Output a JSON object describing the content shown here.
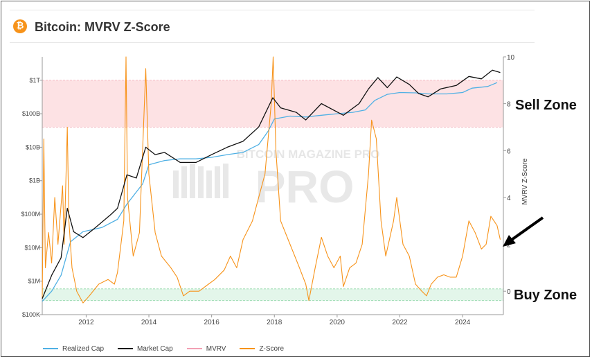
{
  "header": {
    "icon": "bitcoin-icon",
    "icon_glyph": "₿",
    "title": "Bitcoin: MVRV Z-Score"
  },
  "annotations": {
    "sell_zone": "Sell Zone",
    "buy_zone": "Buy Zone"
  },
  "watermark": "BITCOIN MAGAZINE PRO",
  "colors": {
    "realized_cap": "#4fb0e4",
    "market_cap": "#111111",
    "mvrv": "#f2a0b4",
    "z_score": "#f7931a",
    "sell_band": "#fde2e4",
    "buy_band": "#e3f6ea"
  },
  "chart_data": {
    "type": "line",
    "x_range": [
      2010.6,
      2025.3
    ],
    "x_ticks": [
      "2012",
      "2014",
      "2016",
      "2018",
      "2020",
      "2022",
      "2024"
    ],
    "left_axis": {
      "scale": "log",
      "range": [
        100000,
        5000000000000
      ],
      "ticks": [
        {
          "label": "$100K",
          "value": 100000
        },
        {
          "label": "$1M",
          "value": 1000000
        },
        {
          "label": "$10M",
          "value": 10000000
        },
        {
          "label": "$100M",
          "value": 100000000
        },
        {
          "label": "$1B",
          "value": 1000000000
        },
        {
          "label": "$10B",
          "value": 10000000000
        },
        {
          "label": "$100B",
          "value": 100000000000
        },
        {
          "label": "$1T",
          "value": 1000000000000
        }
      ]
    },
    "right_axis": {
      "label": "MVRV Z-Score",
      "range": [
        -1,
        10
      ],
      "ticks": [
        "0",
        "2",
        "4",
        "6",
        "8",
        "10"
      ]
    },
    "sell_zone": [
      7,
      9
    ],
    "buy_zone": [
      -0.4,
      0.1
    ],
    "series": [
      {
        "name": "Realized Cap",
        "axis": "left",
        "points": [
          [
            2010.6,
            250000
          ],
          [
            2010.9,
            500000
          ],
          [
            2011.2,
            1500000
          ],
          [
            2011.5,
            15000000
          ],
          [
            2011.9,
            30000000
          ],
          [
            2012.5,
            40000000
          ],
          [
            2013.0,
            70000000
          ],
          [
            2013.3,
            200000000
          ],
          [
            2013.8,
            800000000
          ],
          [
            2014.0,
            3000000000
          ],
          [
            2014.5,
            4000000000
          ],
          [
            2015.0,
            4500000000
          ],
          [
            2015.5,
            4500000000
          ],
          [
            2016.0,
            5000000000
          ],
          [
            2016.5,
            6000000000
          ],
          [
            2017.0,
            7000000000
          ],
          [
            2017.5,
            12000000000
          ],
          [
            2017.8,
            30000000000
          ],
          [
            2018.0,
            70000000000
          ],
          [
            2018.5,
            85000000000
          ],
          [
            2019.0,
            80000000000
          ],
          [
            2019.5,
            90000000000
          ],
          [
            2020.0,
            100000000000
          ],
          [
            2020.5,
            110000000000
          ],
          [
            2020.9,
            130000000000
          ],
          [
            2021.2,
            250000000000
          ],
          [
            2021.6,
            380000000000
          ],
          [
            2022.0,
            430000000000
          ],
          [
            2022.5,
            420000000000
          ],
          [
            2022.9,
            390000000000
          ],
          [
            2023.5,
            390000000000
          ],
          [
            2024.0,
            430000000000
          ],
          [
            2024.3,
            580000000000
          ],
          [
            2024.8,
            650000000000
          ],
          [
            2025.1,
            850000000000
          ]
        ]
      },
      {
        "name": "Market Cap",
        "axis": "left",
        "points": [
          [
            2010.6,
            300000
          ],
          [
            2010.9,
            1500000
          ],
          [
            2011.2,
            5000000
          ],
          [
            2011.4,
            150000000
          ],
          [
            2011.6,
            30000000
          ],
          [
            2011.9,
            20000000
          ],
          [
            2012.3,
            40000000
          ],
          [
            2012.8,
            100000000
          ],
          [
            2013.0,
            150000000
          ],
          [
            2013.3,
            1500000000
          ],
          [
            2013.6,
            1200000000
          ],
          [
            2013.9,
            10000000000
          ],
          [
            2014.2,
            6000000000
          ],
          [
            2014.5,
            7000000000
          ],
          [
            2015.0,
            3500000000
          ],
          [
            2015.5,
            3500000000
          ],
          [
            2016.0,
            6000000000
          ],
          [
            2016.5,
            10000000000
          ],
          [
            2017.0,
            15000000000
          ],
          [
            2017.5,
            40000000000
          ],
          [
            2017.95,
            300000000000
          ],
          [
            2018.2,
            150000000000
          ],
          [
            2018.7,
            110000000000
          ],
          [
            2019.0,
            65000000000
          ],
          [
            2019.5,
            200000000000
          ],
          [
            2020.2,
            90000000000
          ],
          [
            2020.7,
            200000000000
          ],
          [
            2021.0,
            550000000000
          ],
          [
            2021.3,
            1200000000000
          ],
          [
            2021.6,
            600000000000
          ],
          [
            2021.9,
            1250000000000
          ],
          [
            2022.3,
            750000000000
          ],
          [
            2022.6,
            400000000000
          ],
          [
            2022.9,
            320000000000
          ],
          [
            2023.3,
            550000000000
          ],
          [
            2023.8,
            700000000000
          ],
          [
            2024.2,
            1300000000000
          ],
          [
            2024.6,
            1100000000000
          ],
          [
            2024.95,
            2000000000000
          ],
          [
            2025.2,
            1700000000000
          ]
        ]
      },
      {
        "name": "MVRV",
        "axis": "right",
        "points": []
      },
      {
        "name": "Z-Score",
        "axis": "right",
        "points": [
          [
            2010.6,
            -0.3
          ],
          [
            2010.65,
            6.5
          ],
          [
            2010.7,
            1
          ],
          [
            2010.8,
            2.5
          ],
          [
            2010.9,
            1.2
          ],
          [
            2011.0,
            4
          ],
          [
            2011.1,
            2
          ],
          [
            2011.25,
            4.5
          ],
          [
            2011.3,
            2
          ],
          [
            2011.4,
            7
          ],
          [
            2011.45,
            3
          ],
          [
            2011.55,
            1
          ],
          [
            2011.7,
            0
          ],
          [
            2011.9,
            -0.5
          ],
          [
            2012.1,
            -0.2
          ],
          [
            2012.4,
            0.3
          ],
          [
            2012.7,
            0.5
          ],
          [
            2012.9,
            0.3
          ],
          [
            2013.0,
            0.8
          ],
          [
            2013.2,
            3
          ],
          [
            2013.27,
            10
          ],
          [
            2013.32,
            4
          ],
          [
            2013.5,
            1.5
          ],
          [
            2013.7,
            2.5
          ],
          [
            2013.9,
            9.5
          ],
          [
            2014.0,
            5
          ],
          [
            2014.2,
            2.5
          ],
          [
            2014.4,
            1.5
          ],
          [
            2014.7,
            1
          ],
          [
            2014.9,
            0.6
          ],
          [
            2015.1,
            -0.2
          ],
          [
            2015.3,
            0
          ],
          [
            2015.6,
            0
          ],
          [
            2015.9,
            0.3
          ],
          [
            2016.1,
            0.5
          ],
          [
            2016.4,
            0.9
          ],
          [
            2016.6,
            1.5
          ],
          [
            2016.8,
            1
          ],
          [
            2017.0,
            2.2
          ],
          [
            2017.3,
            3
          ],
          [
            2017.5,
            4
          ],
          [
            2017.7,
            5
          ],
          [
            2017.9,
            8
          ],
          [
            2017.96,
            10
          ],
          [
            2018.05,
            6
          ],
          [
            2018.2,
            3
          ],
          [
            2018.5,
            2
          ],
          [
            2018.8,
            1
          ],
          [
            2019.0,
            0.3
          ],
          [
            2019.1,
            -0.4
          ],
          [
            2019.3,
            1
          ],
          [
            2019.5,
            2.3
          ],
          [
            2019.7,
            1.5
          ],
          [
            2019.9,
            1
          ],
          [
            2020.1,
            1.5
          ],
          [
            2020.2,
            0.2
          ],
          [
            2020.4,
            1
          ],
          [
            2020.6,
            1.2
          ],
          [
            2020.8,
            2
          ],
          [
            2021.0,
            5
          ],
          [
            2021.1,
            7.3
          ],
          [
            2021.25,
            6.5
          ],
          [
            2021.4,
            3
          ],
          [
            2021.55,
            1.5
          ],
          [
            2021.8,
            3
          ],
          [
            2021.9,
            4
          ],
          [
            2022.1,
            2
          ],
          [
            2022.3,
            1.5
          ],
          [
            2022.5,
            0.3
          ],
          [
            2022.7,
            0
          ],
          [
            2022.85,
            -0.2
          ],
          [
            2023.0,
            0.3
          ],
          [
            2023.2,
            0.6
          ],
          [
            2023.4,
            0.7
          ],
          [
            2023.6,
            0.6
          ],
          [
            2023.8,
            0.6
          ],
          [
            2024.0,
            1.5
          ],
          [
            2024.2,
            3
          ],
          [
            2024.4,
            2.5
          ],
          [
            2024.6,
            1.8
          ],
          [
            2024.75,
            2
          ],
          [
            2024.9,
            3.2
          ],
          [
            2025.0,
            3
          ],
          [
            2025.1,
            2.8
          ],
          [
            2025.2,
            2.2
          ]
        ]
      }
    ],
    "legend": [
      "Realized Cap",
      "Market Cap",
      "MVRV",
      "Z-Score"
    ],
    "legend_position": "bottom-left"
  }
}
